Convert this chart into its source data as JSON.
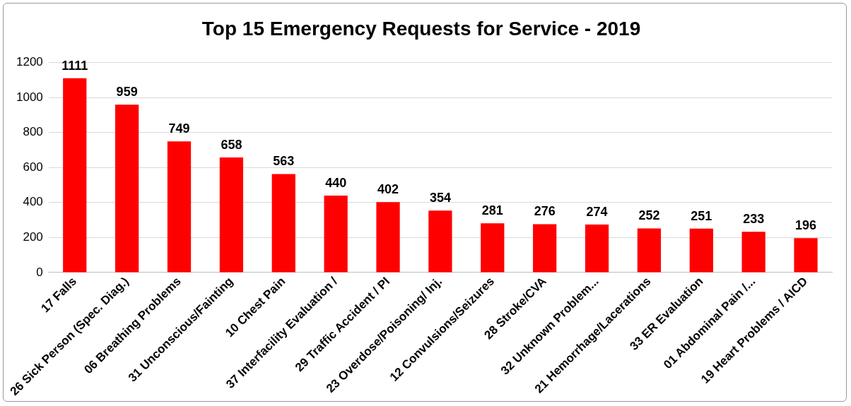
{
  "chart_data": {
    "type": "bar",
    "title": "Top 15 Emergency Requests for Service - 2019",
    "categories": [
      "17 Falls",
      "26 Sick Person (Spec. Diag.)",
      "06 Breathing Problems",
      "31 Unconscious/Fainting",
      "10 Chest Pain",
      "37 Interfacility Evaluation /",
      "29 Traffic Accident / PI",
      "23 Overdose/Poisoning/ Inj.",
      "12 Convulsions/Seizures",
      "28 Stroke/CVA",
      "32 Unknown Problem...",
      "21 Hemorrhage/Lacerations",
      "33 ER Evaluation",
      "01 Abdominal Pain /...",
      "19 Heart Problems / AICD"
    ],
    "values": [
      1111,
      959,
      749,
      658,
      563,
      440,
      402,
      354,
      281,
      276,
      274,
      252,
      251,
      233,
      196
    ],
    "color": "#ff0000",
    "ylim": [
      0,
      1200
    ],
    "yticks": [
      0,
      200,
      400,
      600,
      800,
      1000,
      1200
    ],
    "grid": "y",
    "data_labels": true
  }
}
